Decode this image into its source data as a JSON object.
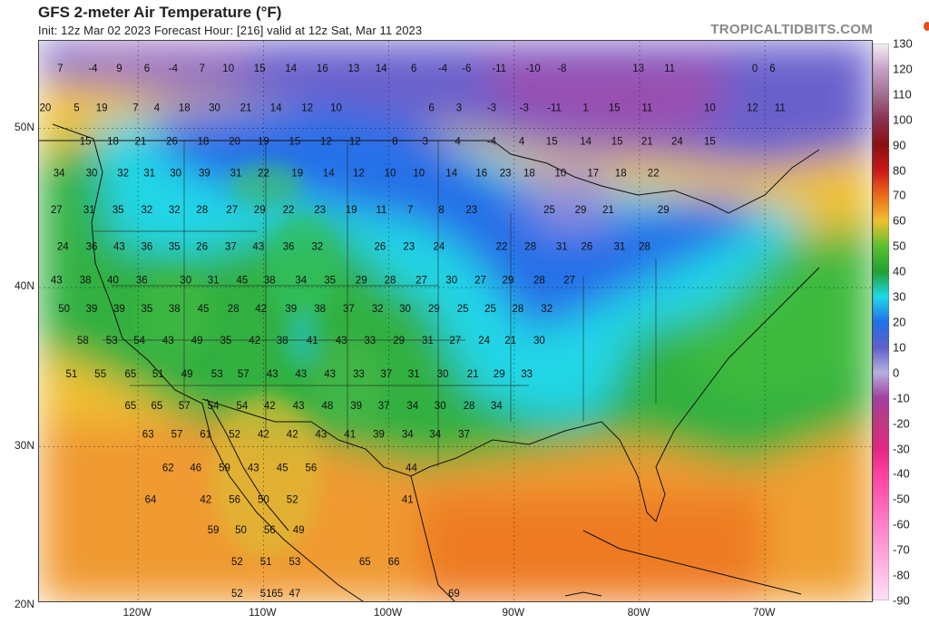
{
  "header": {
    "title": "GFS 2-meter Air Temperature (°F)",
    "subtitle": "Init: 12z Mar 02 2023   Forecast Hour: [216]   valid at 12z Sat, Mar 11 2023",
    "credit": "TROPICALTIDBITS.COM"
  },
  "axes": {
    "lat_labels": [
      {
        "text": "50N",
        "lat": 50
      },
      {
        "text": "40N",
        "lat": 40
      },
      {
        "text": "30N",
        "lat": 30
      },
      {
        "text": "20N",
        "lat": 20
      }
    ],
    "lon_labels": [
      {
        "text": "120W",
        "lon": -120
      },
      {
        "text": "110W",
        "lon": -110
      },
      {
        "text": "100W",
        "lon": -100
      },
      {
        "text": "90W",
        "lon": -90
      },
      {
        "text": "80W",
        "lon": -80
      },
      {
        "text": "70W",
        "lon": -70
      }
    ]
  },
  "colorbar": {
    "labels": [
      "130",
      "120",
      "110",
      "100",
      "90",
      "80",
      "70",
      "60",
      "50",
      "40",
      "30",
      "20",
      "10",
      "0",
      "-10",
      "-20",
      "-30",
      "-40",
      "-50",
      "-60",
      "-70",
      "-80",
      "-90"
    ],
    "stops": [
      {
        "v": 130,
        "c": "#f4f0f4"
      },
      {
        "v": 120,
        "c": "#c8a0c8"
      },
      {
        "v": 110,
        "c": "#a07090"
      },
      {
        "v": 100,
        "c": "#8a3050"
      },
      {
        "v": 90,
        "c": "#8a1010"
      },
      {
        "v": 80,
        "c": "#c81818"
      },
      {
        "v": 70,
        "c": "#ec6a1c"
      },
      {
        "v": 60,
        "c": "#f0c030"
      },
      {
        "v": 50,
        "c": "#5cc030"
      },
      {
        "v": 40,
        "c": "#22a030"
      },
      {
        "v": 30,
        "c": "#20d8e8"
      },
      {
        "v": 20,
        "c": "#2070e8"
      },
      {
        "v": 10,
        "c": "#6060c8"
      },
      {
        "v": 0,
        "c": "#b8b0e0"
      },
      {
        "v": -10,
        "c": "#a040a0"
      },
      {
        "v": -20,
        "c": "#c03880"
      },
      {
        "v": -30,
        "c": "#e02880"
      },
      {
        "v": -40,
        "c": "#ff40a0"
      },
      {
        "v": -60,
        "c": "#ff80c8"
      },
      {
        "v": -90,
        "c": "#ffe0f4"
      }
    ]
  },
  "temps": [
    [
      "7",
      -126.2,
      53.8
    ],
    [
      "-4",
      -123.6,
      53.8
    ],
    [
      "9",
      -121.5,
      53.8
    ],
    [
      "6",
      -119.3,
      53.8
    ],
    [
      "-4",
      -117.2,
      53.8
    ],
    [
      "7",
      -114.9,
      53.8
    ],
    [
      "10",
      -112.8,
      53.8
    ],
    [
      "15",
      -110.3,
      53.8
    ],
    [
      "14",
      -107.8,
      53.8
    ],
    [
      "16",
      -105.3,
      53.8
    ],
    [
      "13",
      -102.8,
      53.8
    ],
    [
      "14",
      -100.6,
      53.8
    ],
    [
      "6",
      -98.0,
      53.8
    ],
    [
      "-4",
      -95.7,
      53.8
    ],
    [
      "-6",
      -93.8,
      53.8
    ],
    [
      "-11",
      -91.2,
      53.8
    ],
    [
      "-10",
      -88.5,
      53.8
    ],
    [
      "-8",
      -86.2,
      53.8
    ],
    [
      "13",
      -80.1,
      53.8
    ],
    [
      "11",
      -77.6,
      53.8
    ],
    [
      "0",
      -70.8,
      53.8
    ],
    [
      "6",
      -69.4,
      53.8
    ],
    [
      "20",
      -127.4,
      51.3
    ],
    [
      "5",
      -124.9,
      51.3
    ],
    [
      "19",
      -122.9,
      51.3
    ],
    [
      "7",
      -120.2,
      51.3
    ],
    [
      "4",
      -118.5,
      51.3
    ],
    [
      "18",
      -116.3,
      51.3
    ],
    [
      "30",
      -113.9,
      51.3
    ],
    [
      "21",
      -111.4,
      51.3
    ],
    [
      "14",
      -109.0,
      51.3
    ],
    [
      "12",
      -106.5,
      51.3
    ],
    [
      "10",
      -104.2,
      51.3
    ],
    [
      "6",
      -96.6,
      51.3
    ],
    [
      "3",
      -94.4,
      51.3
    ],
    [
      "-3",
      -91.8,
      51.3
    ],
    [
      "-3",
      -89.2,
      51.3
    ],
    [
      "-11",
      -86.8,
      51.3
    ],
    [
      "1",
      -84.3,
      51.3
    ],
    [
      "15",
      -82.0,
      51.3
    ],
    [
      "11",
      -79.4,
      51.3
    ],
    [
      "10",
      -74.4,
      51.3
    ],
    [
      "12",
      -71.0,
      51.3
    ],
    [
      "11",
      -68.8,
      51.3
    ],
    [
      "15",
      -124.2,
      49.2
    ],
    [
      "18",
      -122.0,
      49.2
    ],
    [
      "21",
      -119.8,
      49.2
    ],
    [
      "26",
      -117.3,
      49.2
    ],
    [
      "18",
      -114.8,
      49.2
    ],
    [
      "20",
      -112.3,
      49.2
    ],
    [
      "19",
      -110.0,
      49.2
    ],
    [
      "15",
      -107.5,
      49.2
    ],
    [
      "12",
      -105.0,
      49.2
    ],
    [
      "12",
      -102.7,
      49.2
    ],
    [
      "8",
      -99.5,
      49.2
    ],
    [
      "3",
      -97.1,
      49.2
    ],
    [
      "4",
      -94.5,
      49.2
    ],
    [
      "-4",
      -91.8,
      49.2
    ],
    [
      "4",
      -89.4,
      49.2
    ],
    [
      "15",
      -87.0,
      49.2
    ],
    [
      "14",
      -84.3,
      49.2
    ],
    [
      "15",
      -81.8,
      49.2
    ],
    [
      "21",
      -79.4,
      49.2
    ],
    [
      "24",
      -77.0,
      49.2
    ],
    [
      "15",
      -74.4,
      49.2
    ],
    [
      "34",
      -126.3,
      47.2
    ],
    [
      "30",
      -123.7,
      47.2
    ],
    [
      "32",
      -121.2,
      47.2
    ],
    [
      "31",
      -119.1,
      47.2
    ],
    [
      "30",
      -117.0,
      47.2
    ],
    [
      "39",
      -114.7,
      47.2
    ],
    [
      "31",
      -112.2,
      47.2
    ],
    [
      "22",
      -110.0,
      47.2
    ],
    [
      "19",
      -107.3,
      47.2
    ],
    [
      "14",
      -104.8,
      47.2
    ],
    [
      "12",
      -102.4,
      47.2
    ],
    [
      "10",
      -99.9,
      47.2
    ],
    [
      "10",
      -97.6,
      47.2
    ],
    [
      "14",
      -95.0,
      47.2
    ],
    [
      "16",
      -92.6,
      47.2
    ],
    [
      "23",
      -90.7,
      47.2
    ],
    [
      "18",
      -88.8,
      47.2
    ],
    [
      "10",
      -86.3,
      47.2
    ],
    [
      "17",
      -83.7,
      47.2
    ],
    [
      "18",
      -81.5,
      47.2
    ],
    [
      "22",
      -78.9,
      47.2
    ],
    [
      "27",
      -126.5,
      44.9
    ],
    [
      "31",
      -123.9,
      44.9
    ],
    [
      "35",
      -121.6,
      44.9
    ],
    [
      "32",
      -119.3,
      44.9
    ],
    [
      "32",
      -117.1,
      44.9
    ],
    [
      "28",
      -114.9,
      44.9
    ],
    [
      "27",
      -112.5,
      44.9
    ],
    [
      "29",
      -110.3,
      44.9
    ],
    [
      "22",
      -108.0,
      44.9
    ],
    [
      "23",
      -105.5,
      44.9
    ],
    [
      "19",
      -103.0,
      44.9
    ],
    [
      "11",
      -100.6,
      44.9
    ],
    [
      "7",
      -98.3,
      44.9
    ],
    [
      "8",
      -95.8,
      44.9
    ],
    [
      "23",
      -93.4,
      44.9
    ],
    [
      "25",
      -87.2,
      44.9
    ],
    [
      "29",
      -84.7,
      44.9
    ],
    [
      "21",
      -82.5,
      44.9
    ],
    [
      "29",
      -78.1,
      44.9
    ],
    [
      "24",
      -126.0,
      42.6
    ],
    [
      "36",
      -123.7,
      42.6
    ],
    [
      "43",
      -121.5,
      42.6
    ],
    [
      "36",
      -119.3,
      42.6
    ],
    [
      "35",
      -117.1,
      42.6
    ],
    [
      "26",
      -114.9,
      42.6
    ],
    [
      "37",
      -112.6,
      42.6
    ],
    [
      "43",
      -110.4,
      42.6
    ],
    [
      "36",
      -108.0,
      42.6
    ],
    [
      "32",
      -105.7,
      42.6
    ],
    [
      "26",
      -100.7,
      42.6
    ],
    [
      "23",
      -98.4,
      42.6
    ],
    [
      "24",
      -96.0,
      42.6
    ],
    [
      "22",
      -91.0,
      42.6
    ],
    [
      "28",
      -88.7,
      42.6
    ],
    [
      "31",
      -86.2,
      42.6
    ],
    [
      "26",
      -84.2,
      42.6
    ],
    [
      "31",
      -81.6,
      42.6
    ],
    [
      "28",
      -79.6,
      42.6
    ],
    [
      "43",
      -126.5,
      40.5
    ],
    [
      "38",
      -124.2,
      40.5
    ],
    [
      "40",
      -122.0,
      40.5
    ],
    [
      "36",
      -119.7,
      40.5
    ],
    [
      "30",
      -116.2,
      40.5
    ],
    [
      "31",
      -114.0,
      40.5
    ],
    [
      "45",
      -111.7,
      40.5
    ],
    [
      "38",
      -109.5,
      40.5
    ],
    [
      "34",
      -107.0,
      40.5
    ],
    [
      "35",
      -104.7,
      40.5
    ],
    [
      "29",
      -102.2,
      40.5
    ],
    [
      "28",
      -99.9,
      40.5
    ],
    [
      "27",
      -97.4,
      40.5
    ],
    [
      "30",
      -95.0,
      40.5
    ],
    [
      "27",
      -92.7,
      40.5
    ],
    [
      "29",
      -90.5,
      40.5
    ],
    [
      "28",
      -88.0,
      40.5
    ],
    [
      "27",
      -85.6,
      40.5
    ],
    [
      "50",
      -125.9,
      38.7
    ],
    [
      "39",
      -123.7,
      38.7
    ],
    [
      "39",
      -121.5,
      38.7
    ],
    [
      "35",
      -119.3,
      38.7
    ],
    [
      "38",
      -117.1,
      38.7
    ],
    [
      "45",
      -114.8,
      38.7
    ],
    [
      "28",
      -112.4,
      38.7
    ],
    [
      "42",
      -110.2,
      38.7
    ],
    [
      "39",
      -107.8,
      38.7
    ],
    [
      "38",
      -105.5,
      38.7
    ],
    [
      "37",
      -103.2,
      38.7
    ],
    [
      "32",
      -100.9,
      38.7
    ],
    [
      "30",
      -98.7,
      38.7
    ],
    [
      "29",
      -96.4,
      38.7
    ],
    [
      "25",
      -94.1,
      38.7
    ],
    [
      "25",
      -91.9,
      38.7
    ],
    [
      "28",
      -89.7,
      38.7
    ],
    [
      "32",
      -87.4,
      38.7
    ],
    [
      "58",
      -124.4,
      36.7
    ],
    [
      "53",
      -122.1,
      36.7
    ],
    [
      "54",
      -119.9,
      36.7
    ],
    [
      "43",
      -117.6,
      36.7
    ],
    [
      "49",
      -115.3,
      36.7
    ],
    [
      "35",
      -113.0,
      36.7
    ],
    [
      "42",
      -110.7,
      36.7
    ],
    [
      "38",
      -108.5,
      36.7
    ],
    [
      "41",
      -106.1,
      36.7
    ],
    [
      "43",
      -103.8,
      36.7
    ],
    [
      "33",
      -101.5,
      36.7
    ],
    [
      "29",
      -99.2,
      36.7
    ],
    [
      "31",
      -96.9,
      36.7
    ],
    [
      "27",
      -94.7,
      36.7
    ],
    [
      "24",
      -92.4,
      36.7
    ],
    [
      "21",
      -90.3,
      36.7
    ],
    [
      "30",
      -88.0,
      36.7
    ],
    [
      "51",
      -125.3,
      34.6
    ],
    [
      "55",
      -123.0,
      34.6
    ],
    [
      "65",
      -120.6,
      34.6
    ],
    [
      "51",
      -118.4,
      34.6
    ],
    [
      "49",
      -116.1,
      34.6
    ],
    [
      "53",
      -113.7,
      34.6
    ],
    [
      "57",
      -111.6,
      34.6
    ],
    [
      "43",
      -109.3,
      34.6
    ],
    [
      "43",
      -107.0,
      34.6
    ],
    [
      "43",
      -104.7,
      34.6
    ],
    [
      "33",
      -102.4,
      34.6
    ],
    [
      "37",
      -100.2,
      34.6
    ],
    [
      "31",
      -98.0,
      34.6
    ],
    [
      "30",
      -95.7,
      34.6
    ],
    [
      "21",
      -93.3,
      34.6
    ],
    [
      "29",
      -91.2,
      34.6
    ],
    [
      "33",
      -89.0,
      34.6
    ],
    [
      "65",
      -120.6,
      32.6
    ],
    [
      "65",
      -118.5,
      32.6
    ],
    [
      "57",
      -116.3,
      32.6
    ],
    [
      "54",
      -114.0,
      32.6
    ],
    [
      "54",
      -111.7,
      32.6
    ],
    [
      "42",
      -109.5,
      32.6
    ],
    [
      "43",
      -107.2,
      32.6
    ],
    [
      "48",
      -104.9,
      32.6
    ],
    [
      "39",
      -102.6,
      32.6
    ],
    [
      "37",
      -100.4,
      32.6
    ],
    [
      "34",
      -98.1,
      32.6
    ],
    [
      "30",
      -95.9,
      32.6
    ],
    [
      "28",
      -93.6,
      32.6
    ],
    [
      "34",
      -91.4,
      32.6
    ],
    [
      "63",
      -119.2,
      30.8
    ],
    [
      "57",
      -116.9,
      30.8
    ],
    [
      "61",
      -114.6,
      30.8
    ],
    [
      "52",
      -112.3,
      30.8
    ],
    [
      "42",
      -110.0,
      30.8
    ],
    [
      "42",
      -107.7,
      30.8
    ],
    [
      "43",
      -105.4,
      30.8
    ],
    [
      "41",
      -103.1,
      30.8
    ],
    [
      "39",
      -100.8,
      30.8
    ],
    [
      "34",
      -98.5,
      30.8
    ],
    [
      "34",
      -96.3,
      30.8
    ],
    [
      "37",
      -94.0,
      30.8
    ],
    [
      "62",
      -117.6,
      28.7
    ],
    [
      "46",
      -115.4,
      28.7
    ],
    [
      "59",
      -113.1,
      28.7
    ],
    [
      "43",
      -110.8,
      28.7
    ],
    [
      "45",
      -108.5,
      28.7
    ],
    [
      "56",
      -106.2,
      28.7
    ],
    [
      "44",
      -98.2,
      28.7
    ],
    [
      "64",
      -119.0,
      26.7
    ],
    [
      "42",
      -114.6,
      26.7
    ],
    [
      "56",
      -112.3,
      26.7
    ],
    [
      "50",
      -110.0,
      26.7
    ],
    [
      "52",
      -107.7,
      26.7
    ],
    [
      "41",
      -98.5,
      26.7
    ],
    [
      "59",
      -114.0,
      24.8
    ],
    [
      "50",
      -111.8,
      24.8
    ],
    [
      "56",
      -109.5,
      24.8
    ],
    [
      "49",
      -107.2,
      24.8
    ],
    [
      "52",
      -112.1,
      22.8
    ],
    [
      "51",
      -109.8,
      22.8
    ],
    [
      "53",
      -107.5,
      22.8
    ],
    [
      "65",
      -101.9,
      22.8
    ],
    [
      "66",
      -99.6,
      22.8
    ],
    [
      "52",
      -112.1,
      20.8
    ],
    [
      "51",
      -109.8,
      20.8
    ],
    [
      "47",
      -107.5,
      20.8
    ],
    [
      "65",
      -108.9,
      20.8
    ],
    [
      "69",
      -94.8,
      20.8
    ]
  ]
}
